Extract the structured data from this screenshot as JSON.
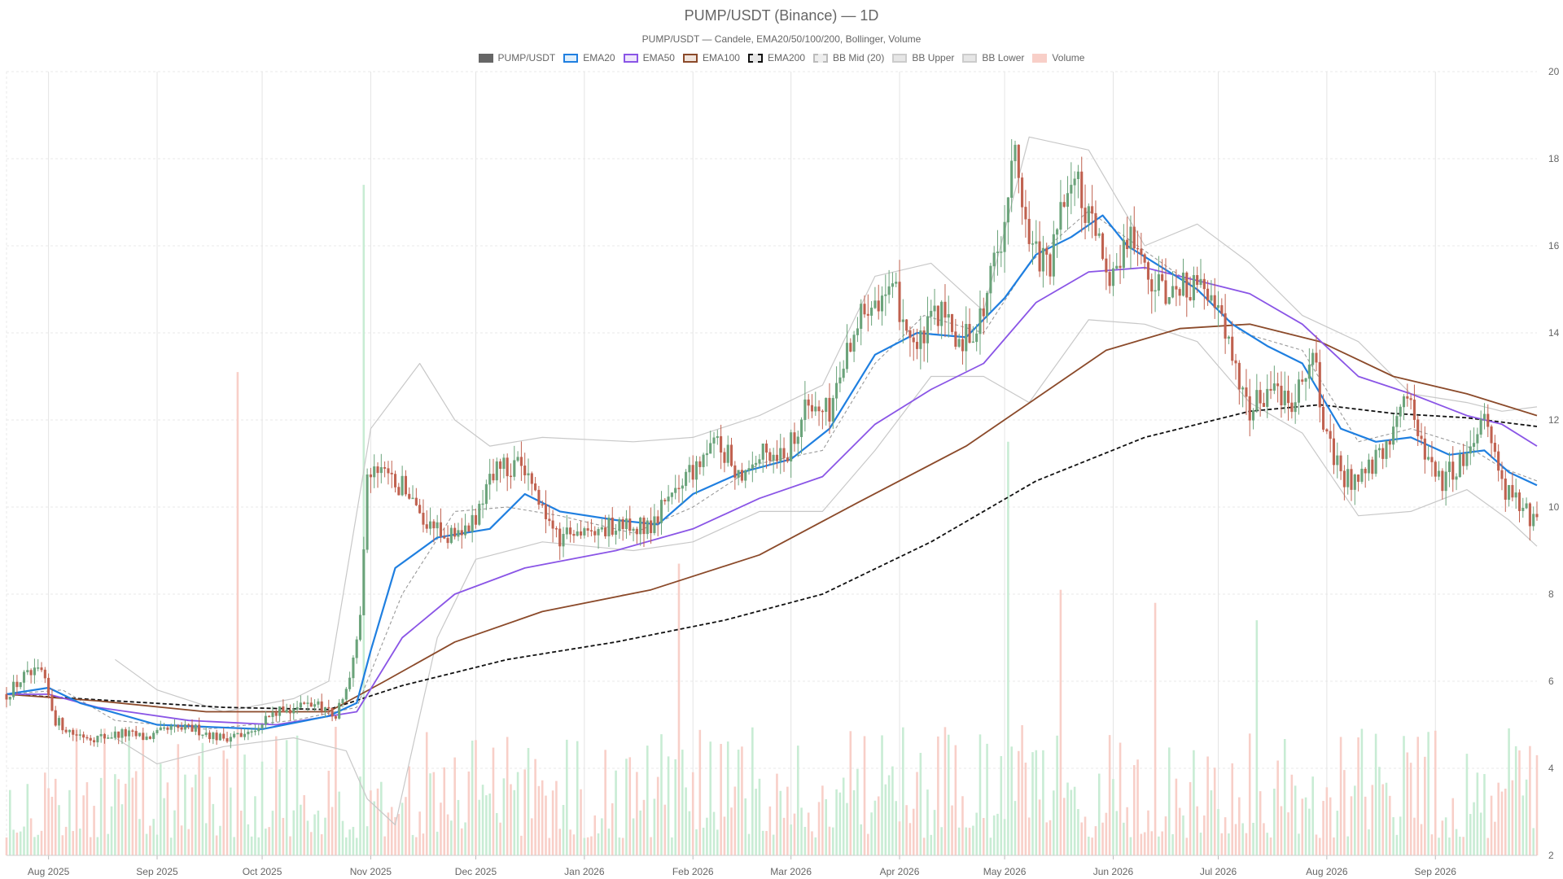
{
  "chart_data": {
    "type": "candlestick",
    "title": "PUMP/USDT (Binance) — 1D",
    "subtitle": "PUMP/USDT — Candele, EMA20/50/100/200, Bollinger, Volume",
    "legend": [
      {
        "label": "PUMP/USDT",
        "color": "#666666",
        "fill": "#666666",
        "style": "solid"
      },
      {
        "label": "EMA20",
        "color": "#1f7fe0",
        "fill": "#dfeffc",
        "style": "solid"
      },
      {
        "label": "EMA50",
        "color": "#8a55e6",
        "fill": "#efe6fc",
        "style": "solid"
      },
      {
        "label": "EMA100",
        "color": "#8b4a2a",
        "fill": "#f1e4dc",
        "style": "solid"
      },
      {
        "label": "EMA200",
        "color": "#111111",
        "fill": "#e6e6e6",
        "style": "dashed"
      },
      {
        "label": "BB Mid (20)",
        "color": "#bbbbbb",
        "fill": "#eeeeee",
        "style": "dashed"
      },
      {
        "label": "BB Upper",
        "color": "#cccccc",
        "fill": "#e6e6e6",
        "style": "solid"
      },
      {
        "label": "BB Lower",
        "color": "#cccccc",
        "fill": "#e6e6e6",
        "style": "solid"
      },
      {
        "label": "Volume",
        "color": "#f8cfc8",
        "fill": "#f8cfc8",
        "style": "solid"
      }
    ],
    "legend_position": "top-center",
    "y_axis": {
      "side": "right",
      "min": 2,
      "max": 20,
      "ticks": [
        2,
        4,
        6,
        8,
        10,
        12,
        14,
        16,
        18,
        20
      ]
    },
    "x_axis": {
      "start": "2025-07-20",
      "end": "2026-09-30",
      "tick_labels": [
        {
          "label": "Aug 2025",
          "date": "2025-08-01"
        },
        {
          "label": "Sep 2025",
          "date": "2025-09-01"
        },
        {
          "label": "Oct 2025",
          "date": "2025-10-01"
        },
        {
          "label": "Nov 2025",
          "date": "2025-11-01"
        },
        {
          "label": "Dec 2025",
          "date": "2025-12-01"
        },
        {
          "label": "Jan 2026",
          "date": "2026-01-01"
        },
        {
          "label": "Feb 2026",
          "date": "2026-02-01"
        },
        {
          "label": "Mar 2026",
          "date": "2026-03-01"
        },
        {
          "label": "Apr 2026",
          "date": "2026-04-01"
        },
        {
          "label": "May 2026",
          "date": "2026-05-01"
        },
        {
          "label": "Jun 2026",
          "date": "2026-06-01"
        },
        {
          "label": "Jul 2026",
          "date": "2026-07-01"
        },
        {
          "label": "Aug 2026",
          "date": "2026-08-01"
        },
        {
          "label": "Sep 2026",
          "date": "2026-09-01"
        }
      ]
    },
    "grid": true,
    "colors": {
      "up": "#6aa37a",
      "down": "#c0614f",
      "up_volume": "#c8ecd4",
      "down_volume": "#f8cfc8"
    },
    "close_path": [
      [
        "2025-07-20",
        5.7
      ],
      [
        "2025-07-25",
        6.1
      ],
      [
        "2025-07-30",
        6.2
      ],
      [
        "2025-08-03",
        5.1
      ],
      [
        "2025-08-08",
        4.8
      ],
      [
        "2025-08-15",
        4.7
      ],
      [
        "2025-08-22",
        4.8
      ],
      [
        "2025-08-29",
        4.7
      ],
      [
        "2025-09-05",
        4.9
      ],
      [
        "2025-09-12",
        4.9
      ],
      [
        "2025-09-19",
        4.7
      ],
      [
        "2025-09-26",
        4.8
      ],
      [
        "2025-10-03",
        5.2
      ],
      [
        "2025-10-10",
        5.4
      ],
      [
        "2025-10-17",
        5.5
      ],
      [
        "2025-10-22",
        5.2
      ],
      [
        "2025-10-26",
        6.0
      ],
      [
        "2025-10-29",
        7.5
      ],
      [
        "2025-10-31",
        10.8
      ],
      [
        "2025-11-06",
        10.6
      ],
      [
        "2025-11-12",
        10.4
      ],
      [
        "2025-11-18",
        9.5
      ],
      [
        "2025-11-24",
        9.3
      ],
      [
        "2025-11-30",
        9.6
      ],
      [
        "2025-12-06",
        10.8
      ],
      [
        "2025-12-12",
        11.0
      ],
      [
        "2025-12-18",
        10.3
      ],
      [
        "2025-12-24",
        9.3
      ],
      [
        "2025-12-30",
        9.5
      ],
      [
        "2026-01-06",
        9.5
      ],
      [
        "2026-01-13",
        9.6
      ],
      [
        "2026-01-20",
        9.6
      ],
      [
        "2026-01-25",
        10.3
      ],
      [
        "2026-02-01",
        10.9
      ],
      [
        "2026-02-08",
        11.5
      ],
      [
        "2026-02-14",
        10.8
      ],
      [
        "2026-02-21",
        11.2
      ],
      [
        "2026-02-28",
        11.3
      ],
      [
        "2026-03-05",
        12.3
      ],
      [
        "2026-03-12",
        12.2
      ],
      [
        "2026-03-18",
        13.9
      ],
      [
        "2026-03-24",
        14.9
      ],
      [
        "2026-03-31",
        14.8
      ],
      [
        "2026-04-06",
        13.6
      ],
      [
        "2026-04-12",
        14.5
      ],
      [
        "2026-04-18",
        13.8
      ],
      [
        "2026-04-24",
        14.3
      ],
      [
        "2026-04-30",
        16.2
      ],
      [
        "2026-05-04",
        18.2
      ],
      [
        "2026-05-08",
        16.0
      ],
      [
        "2026-05-14",
        15.5
      ],
      [
        "2026-05-20",
        17.8
      ],
      [
        "2026-05-27",
        16.1
      ],
      [
        "2026-06-01",
        15.3
      ],
      [
        "2026-06-06",
        16.4
      ],
      [
        "2026-06-12",
        15.0
      ],
      [
        "2026-06-18",
        14.9
      ],
      [
        "2026-06-25",
        15.2
      ],
      [
        "2026-07-01",
        14.5
      ],
      [
        "2026-07-06",
        13.3
      ],
      [
        "2026-07-10",
        12.2
      ],
      [
        "2026-07-16",
        12.8
      ],
      [
        "2026-07-22",
        12.5
      ],
      [
        "2026-07-28",
        13.5
      ],
      [
        "2026-08-01",
        11.5
      ],
      [
        "2026-08-06",
        10.6
      ],
      [
        "2026-08-12",
        10.8
      ],
      [
        "2026-08-18",
        11.3
      ],
      [
        "2026-08-23",
        12.8
      ],
      [
        "2026-08-28",
        11.5
      ],
      [
        "2026-09-03",
        10.6
      ],
      [
        "2026-09-10",
        11.2
      ],
      [
        "2026-09-15",
        12.3
      ],
      [
        "2026-09-20",
        10.5
      ],
      [
        "2026-09-26",
        10.0
      ],
      [
        "2026-09-30",
        9.6
      ]
    ],
    "volume_spikes": [
      {
        "date": "2025-09-24",
        "value": 13.1,
        "direction": "down"
      },
      {
        "date": "2025-10-30",
        "value": 17.4,
        "direction": "up"
      },
      {
        "date": "2026-01-28",
        "value": 8.7,
        "direction": "down"
      },
      {
        "date": "2026-05-02",
        "value": 11.5,
        "direction": "up"
      },
      {
        "date": "2026-05-17",
        "value": 8.1,
        "direction": "down"
      },
      {
        "date": "2026-06-13",
        "value": 7.8,
        "direction": "down"
      },
      {
        "date": "2026-07-12",
        "value": 7.4,
        "direction": "up"
      }
    ],
    "ema20": [
      [
        "2025-07-20",
        5.7
      ],
      [
        "2025-08-01",
        5.85
      ],
      [
        "2025-08-10",
        5.5
      ],
      [
        "2025-09-01",
        5.0
      ],
      [
        "2025-10-01",
        4.9
      ],
      [
        "2025-10-20",
        5.2
      ],
      [
        "2025-10-28",
        5.5
      ],
      [
        "2025-11-01",
        6.7
      ],
      [
        "2025-11-08",
        8.6
      ],
      [
        "2025-11-20",
        9.3
      ],
      [
        "2025-12-05",
        9.5
      ],
      [
        "2025-12-15",
        10.3
      ],
      [
        "2025-12-25",
        9.9
      ],
      [
        "2026-01-10",
        9.7
      ],
      [
        "2026-01-22",
        9.6
      ],
      [
        "2026-02-01",
        10.3
      ],
      [
        "2026-02-15",
        10.8
      ],
      [
        "2026-03-01",
        11.1
      ],
      [
        "2026-03-12",
        11.8
      ],
      [
        "2026-03-25",
        13.5
      ],
      [
        "2026-04-06",
        14.0
      ],
      [
        "2026-04-20",
        13.9
      ],
      [
        "2026-05-01",
        14.8
      ],
      [
        "2026-05-10",
        15.8
      ],
      [
        "2026-05-20",
        16.2
      ],
      [
        "2026-05-29",
        16.7
      ],
      [
        "2026-06-05",
        16.0
      ],
      [
        "2026-06-15",
        15.5
      ],
      [
        "2026-06-25",
        15.0
      ],
      [
        "2026-07-05",
        14.2
      ],
      [
        "2026-07-15",
        13.7
      ],
      [
        "2026-07-25",
        13.3
      ],
      [
        "2026-08-05",
        11.8
      ],
      [
        "2026-08-15",
        11.5
      ],
      [
        "2026-08-25",
        11.6
      ],
      [
        "2026-09-05",
        11.2
      ],
      [
        "2026-09-15",
        11.3
      ],
      [
        "2026-09-22",
        10.8
      ],
      [
        "2026-09-30",
        10.5
      ]
    ],
    "ema50": [
      [
        "2025-07-20",
        5.7
      ],
      [
        "2025-08-01",
        5.7
      ],
      [
        "2025-08-15",
        5.4
      ],
      [
        "2025-09-10",
        5.1
      ],
      [
        "2025-10-05",
        5.0
      ],
      [
        "2025-10-28",
        5.3
      ],
      [
        "2025-11-10",
        7.0
      ],
      [
        "2025-11-25",
        8.0
      ],
      [
        "2025-12-15",
        8.6
      ],
      [
        "2026-01-10",
        9.0
      ],
      [
        "2026-02-01",
        9.5
      ],
      [
        "2026-02-20",
        10.2
      ],
      [
        "2026-03-10",
        10.7
      ],
      [
        "2026-03-25",
        11.9
      ],
      [
        "2026-04-10",
        12.7
      ],
      [
        "2026-04-25",
        13.3
      ],
      [
        "2026-05-10",
        14.7
      ],
      [
        "2026-05-25",
        15.4
      ],
      [
        "2026-06-10",
        15.5
      ],
      [
        "2026-06-25",
        15.2
      ],
      [
        "2026-07-10",
        14.9
      ],
      [
        "2026-07-25",
        14.2
      ],
      [
        "2026-08-10",
        13.0
      ],
      [
        "2026-08-25",
        12.6
      ],
      [
        "2026-09-10",
        12.1
      ],
      [
        "2026-09-20",
        11.9
      ],
      [
        "2026-09-30",
        11.4
      ]
    ],
    "ema100": [
      [
        "2025-07-20",
        5.7
      ],
      [
        "2025-08-15",
        5.55
      ],
      [
        "2025-09-15",
        5.3
      ],
      [
        "2025-10-20",
        5.3
      ],
      [
        "2025-11-05",
        6.0
      ],
      [
        "2025-11-25",
        6.9
      ],
      [
        "2025-12-20",
        7.6
      ],
      [
        "2026-01-20",
        8.1
      ],
      [
        "2026-02-20",
        8.9
      ],
      [
        "2026-03-20",
        10.1
      ],
      [
        "2026-04-20",
        11.4
      ],
      [
        "2026-05-10",
        12.5
      ],
      [
        "2026-05-30",
        13.6
      ],
      [
        "2026-06-20",
        14.1
      ],
      [
        "2026-07-10",
        14.2
      ],
      [
        "2026-07-30",
        13.8
      ],
      [
        "2026-08-20",
        13.0
      ],
      [
        "2026-09-10",
        12.6
      ],
      [
        "2026-09-30",
        12.1
      ]
    ],
    "ema200": [
      [
        "2025-07-20",
        5.7
      ],
      [
        "2025-08-20",
        5.55
      ],
      [
        "2025-09-20",
        5.4
      ],
      [
        "2025-10-20",
        5.35
      ],
      [
        "2025-11-10",
        5.9
      ],
      [
        "2025-12-10",
        6.5
      ],
      [
        "2026-01-10",
        6.9
      ],
      [
        "2026-02-10",
        7.4
      ],
      [
        "2026-03-10",
        8.0
      ],
      [
        "2026-04-10",
        9.2
      ],
      [
        "2026-05-10",
        10.6
      ],
      [
        "2026-06-10",
        11.6
      ],
      [
        "2026-07-10",
        12.2
      ],
      [
        "2026-07-30",
        12.35
      ],
      [
        "2026-08-20",
        12.15
      ],
      [
        "2026-09-10",
        12.05
      ],
      [
        "2026-09-30",
        11.85
      ]
    ],
    "bb_mid": [
      [
        "2025-07-20",
        5.7
      ],
      [
        "2025-08-05",
        5.8
      ],
      [
        "2025-08-20",
        5.1
      ],
      [
        "2025-09-15",
        4.9
      ],
      [
        "2025-10-10",
        5.1
      ],
      [
        "2025-10-28",
        5.4
      ],
      [
        "2025-11-10",
        8.0
      ],
      [
        "2025-11-25",
        9.9
      ],
      [
        "2025-12-10",
        10.0
      ],
      [
        "2025-12-25",
        9.8
      ],
      [
        "2026-01-15",
        9.4
      ],
      [
        "2026-02-01",
        10.0
      ],
      [
        "2026-02-20",
        11.0
      ],
      [
        "2026-03-10",
        11.3
      ],
      [
        "2026-03-25",
        13.3
      ],
      [
        "2026-04-08",
        14.4
      ],
      [
        "2026-04-25",
        14.0
      ],
      [
        "2026-05-08",
        15.6
      ],
      [
        "2026-05-25",
        16.8
      ],
      [
        "2026-06-08",
        16.0
      ],
      [
        "2026-06-22",
        15.2
      ],
      [
        "2026-07-08",
        14.0
      ],
      [
        "2026-07-25",
        13.6
      ],
      [
        "2026-08-10",
        11.5
      ],
      [
        "2026-08-25",
        11.8
      ],
      [
        "2026-09-10",
        11.4
      ],
      [
        "2026-09-20",
        10.9
      ],
      [
        "2026-09-30",
        10.6
      ]
    ],
    "bb_upper": [
      [
        "2025-08-20",
        6.5
      ],
      [
        "2025-09-01",
        5.8
      ],
      [
        "2025-09-20",
        5.3
      ],
      [
        "2025-10-10",
        5.6
      ],
      [
        "2025-10-20",
        6.0
      ],
      [
        "2025-11-01",
        11.8
      ],
      [
        "2025-11-15",
        13.3
      ],
      [
        "2025-11-25",
        12.0
      ],
      [
        "2025-12-05",
        11.4
      ],
      [
        "2025-12-20",
        11.6
      ],
      [
        "2026-01-15",
        11.5
      ],
      [
        "2026-02-01",
        11.6
      ],
      [
        "2026-02-20",
        12.1
      ],
      [
        "2026-03-10",
        12.8
      ],
      [
        "2026-03-25",
        15.3
      ],
      [
        "2026-04-10",
        15.6
      ],
      [
        "2026-04-25",
        14.5
      ],
      [
        "2026-05-08",
        18.5
      ],
      [
        "2026-05-25",
        18.2
      ],
      [
        "2026-06-10",
        16.0
      ],
      [
        "2026-06-25",
        16.5
      ],
      [
        "2026-07-10",
        15.6
      ],
      [
        "2026-07-25",
        14.4
      ],
      [
        "2026-08-10",
        13.8
      ],
      [
        "2026-08-25",
        12.6
      ],
      [
        "2026-09-10",
        12.4
      ],
      [
        "2026-09-20",
        12.2
      ],
      [
        "2026-09-30",
        12.3
      ]
    ],
    "bb_lower": [
      [
        "2025-08-20",
        4.7
      ],
      [
        "2025-09-01",
        4.1
      ],
      [
        "2025-09-20",
        4.5
      ],
      [
        "2025-10-10",
        4.7
      ],
      [
        "2025-10-25",
        4.4
      ],
      [
        "2025-10-31",
        3.3
      ],
      [
        "2025-11-08",
        2.7
      ],
      [
        "2025-11-20",
        7.0
      ],
      [
        "2025-12-01",
        8.8
      ],
      [
        "2025-12-20",
        9.2
      ],
      [
        "2026-01-15",
        9.0
      ],
      [
        "2026-02-01",
        9.2
      ],
      [
        "2026-02-20",
        9.9
      ],
      [
        "2026-03-10",
        9.9
      ],
      [
        "2026-03-25",
        11.3
      ],
      [
        "2026-04-10",
        13.0
      ],
      [
        "2026-04-25",
        13.0
      ],
      [
        "2026-05-08",
        12.4
      ],
      [
        "2026-05-25",
        14.3
      ],
      [
        "2026-06-10",
        14.2
      ],
      [
        "2026-06-25",
        13.8
      ],
      [
        "2026-07-10",
        12.4
      ],
      [
        "2026-07-25",
        11.7
      ],
      [
        "2026-08-10",
        9.8
      ],
      [
        "2026-08-25",
        9.9
      ],
      [
        "2026-09-10",
        10.4
      ],
      [
        "2026-09-22",
        9.7
      ],
      [
        "2026-09-30",
        9.1
      ]
    ]
  }
}
